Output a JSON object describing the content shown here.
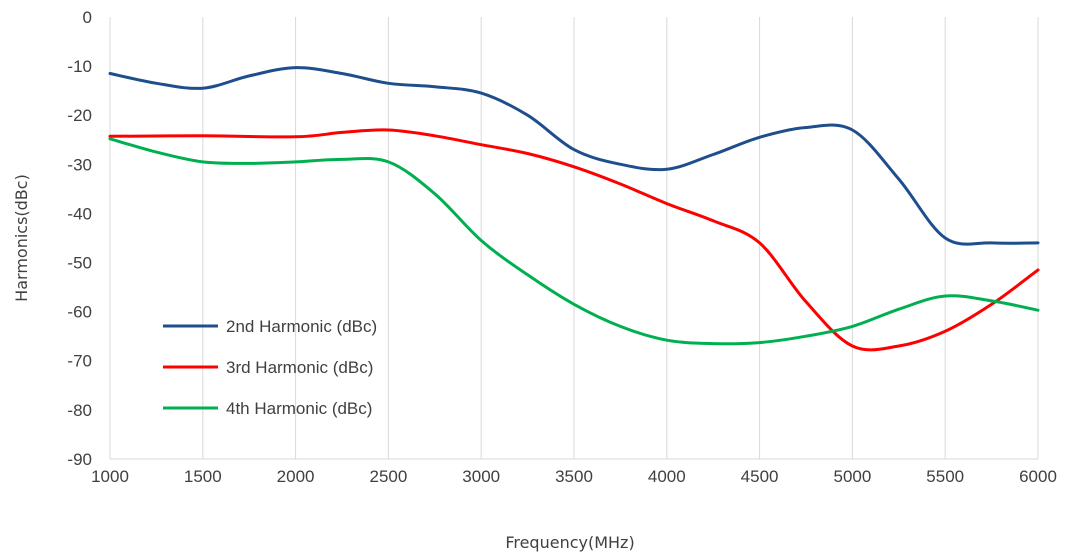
{
  "chart_data": {
    "type": "line",
    "title": "",
    "xlabel": "Frequency(MHz)",
    "ylabel": "Harmonics(dBc)",
    "xlim": [
      1000,
      6000
    ],
    "ylim": [
      -90,
      0
    ],
    "x_ticks": [
      1000,
      1500,
      2000,
      2500,
      3000,
      3500,
      4000,
      4500,
      5000,
      5500,
      6000
    ],
    "y_ticks": [
      0,
      -10,
      -20,
      -30,
      -40,
      -50,
      -60,
      -70,
      -80,
      -90
    ],
    "grid": "vertical",
    "legend_position": "lower-left",
    "series": [
      {
        "name": "2nd Harmonic  (dBc)",
        "color": "#1f4e8c",
        "points": [
          [
            1000,
            -11.5
          ],
          [
            1250,
            -13.5
          ],
          [
            1500,
            -14.5
          ],
          [
            1750,
            -12
          ],
          [
            2000,
            -10.3
          ],
          [
            2250,
            -11.5
          ],
          [
            2500,
            -13.5
          ],
          [
            2750,
            -14.2
          ],
          [
            3000,
            -15.5
          ],
          [
            3250,
            -20
          ],
          [
            3500,
            -27
          ],
          [
            3750,
            -30
          ],
          [
            4000,
            -31
          ],
          [
            4250,
            -28
          ],
          [
            4500,
            -24.5
          ],
          [
            4750,
            -22.5
          ],
          [
            5000,
            -23
          ],
          [
            5250,
            -33
          ],
          [
            5500,
            -45
          ],
          [
            5750,
            -46
          ],
          [
            6000,
            -46
          ]
        ]
      },
      {
        "name": "3rd Harmonic  (dBc)",
        "color": "#ff0000",
        "points": [
          [
            1000,
            -24.3
          ],
          [
            1500,
            -24.2
          ],
          [
            2000,
            -24.4
          ],
          [
            2250,
            -23.5
          ],
          [
            2500,
            -23
          ],
          [
            2750,
            -24.2
          ],
          [
            3000,
            -26
          ],
          [
            3250,
            -27.8
          ],
          [
            3500,
            -30.5
          ],
          [
            3750,
            -34
          ],
          [
            4000,
            -38
          ],
          [
            4250,
            -41.5
          ],
          [
            4500,
            -46
          ],
          [
            4750,
            -58
          ],
          [
            5000,
            -67
          ],
          [
            5250,
            -67
          ],
          [
            5500,
            -64
          ],
          [
            5750,
            -58.5
          ],
          [
            6000,
            -51.5
          ]
        ]
      },
      {
        "name": "4th Harmonic  (dBc)",
        "color": "#00b050",
        "points": [
          [
            1000,
            -24.8
          ],
          [
            1250,
            -27.5
          ],
          [
            1500,
            -29.5
          ],
          [
            1750,
            -29.8
          ],
          [
            2000,
            -29.5
          ],
          [
            2250,
            -29
          ],
          [
            2500,
            -29.5
          ],
          [
            2750,
            -36
          ],
          [
            3000,
            -45.5
          ],
          [
            3250,
            -52.5
          ],
          [
            3500,
            -58.5
          ],
          [
            3750,
            -63
          ],
          [
            4000,
            -65.8
          ],
          [
            4250,
            -66.5
          ],
          [
            4500,
            -66.3
          ],
          [
            4750,
            -65
          ],
          [
            5000,
            -63
          ],
          [
            5250,
            -59.5
          ],
          [
            5500,
            -56.8
          ],
          [
            5750,
            -57.8
          ],
          [
            6000,
            -59.7
          ]
        ]
      }
    ]
  }
}
